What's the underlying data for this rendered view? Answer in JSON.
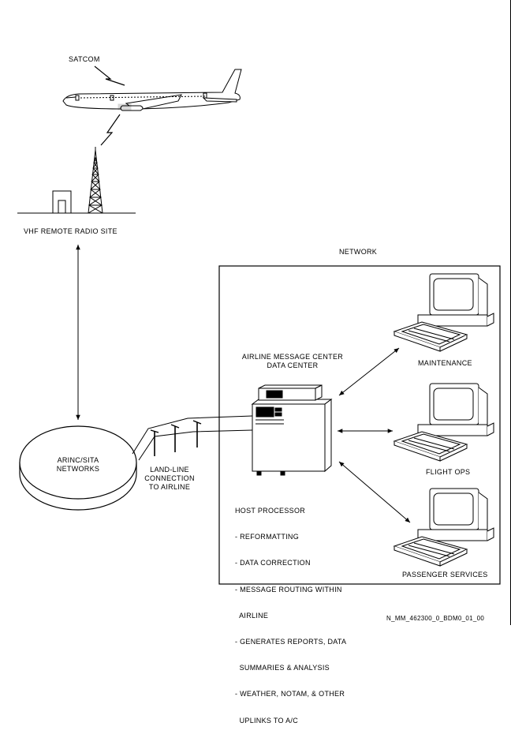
{
  "labels": {
    "satcom": "SATCOM",
    "vhf_site": "VHF REMOTE RADIO SITE",
    "network": "NETWORK",
    "arinc_line1": "ARINC/SITA",
    "arinc_line2": "NETWORKS",
    "land_line1": "LAND-LINE",
    "land_line2": "CONNECTION",
    "land_line3": "TO AIRLINE",
    "message_center_line1": "AIRLINE MESSAGE CENTER",
    "message_center_line2": "DATA CENTER",
    "maintenance": "MAINTENANCE",
    "flight_ops": "FLIGHT OPS",
    "passenger_services": "PASSENGER SERVICES",
    "figure_id": "N_MM_462300_0_BDM0_01_00"
  },
  "host_processor": {
    "title": "HOST PROCESSOR",
    "items": [
      "- REFORMATTING",
      "- DATA CORRECTION",
      "- MESSAGE ROUTING WITHIN",
      "  AIRLINE",
      "- GENERATES REPORTS, DATA",
      "  SUMMARIES & ANALYSIS",
      "- WEATHER, NOTAM, & OTHER",
      "  UPLINKS TO A/C"
    ]
  }
}
